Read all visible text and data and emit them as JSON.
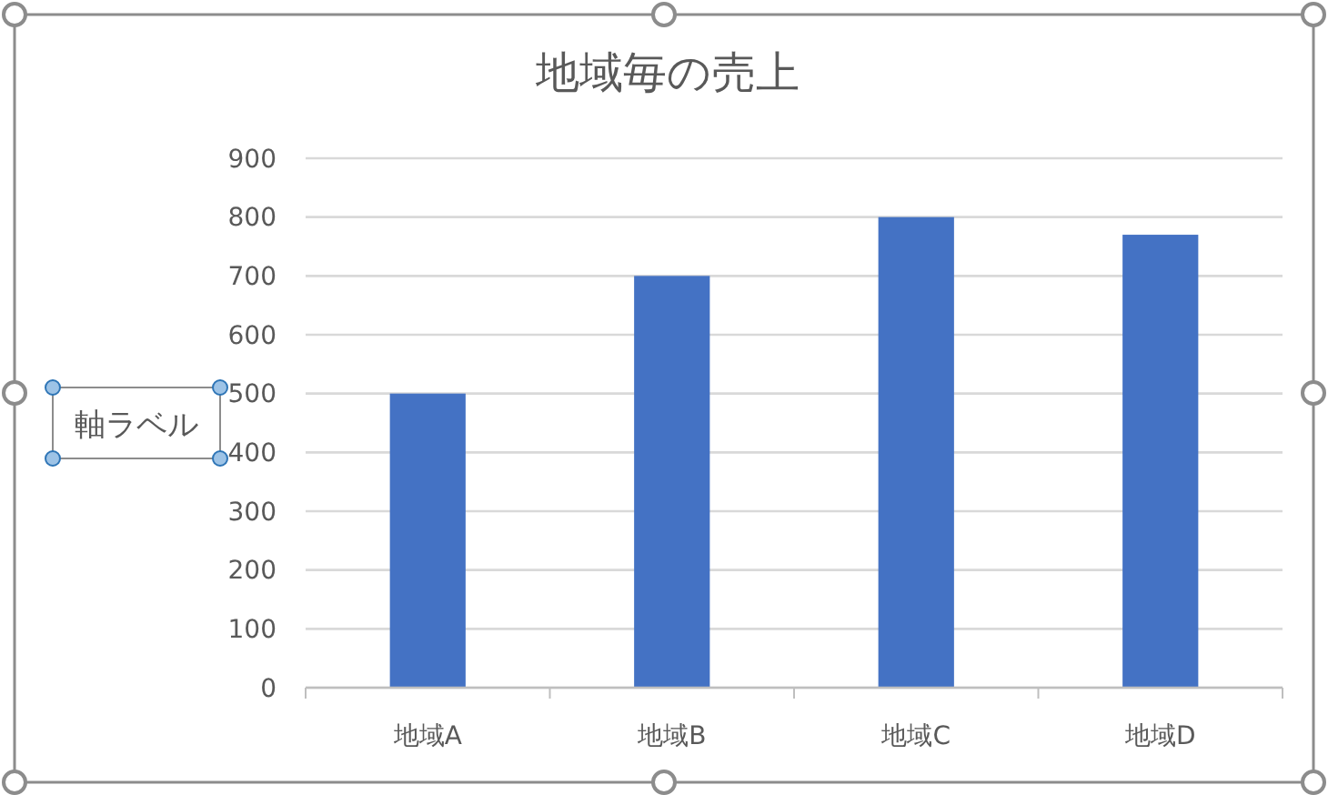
{
  "chart_data": {
    "type": "bar",
    "title": "地域毎の売上",
    "ylabel": "軸ラベル",
    "categories": [
      "地域A",
      "地域B",
      "地域C",
      "地域D"
    ],
    "values": [
      500,
      700,
      800,
      770
    ],
    "color": "#4472c4",
    "ylim": [
      0,
      900
    ],
    "yticks": [
      0,
      100,
      200,
      300,
      400,
      500,
      600,
      700,
      800,
      900
    ],
    "grid": "y"
  }
}
